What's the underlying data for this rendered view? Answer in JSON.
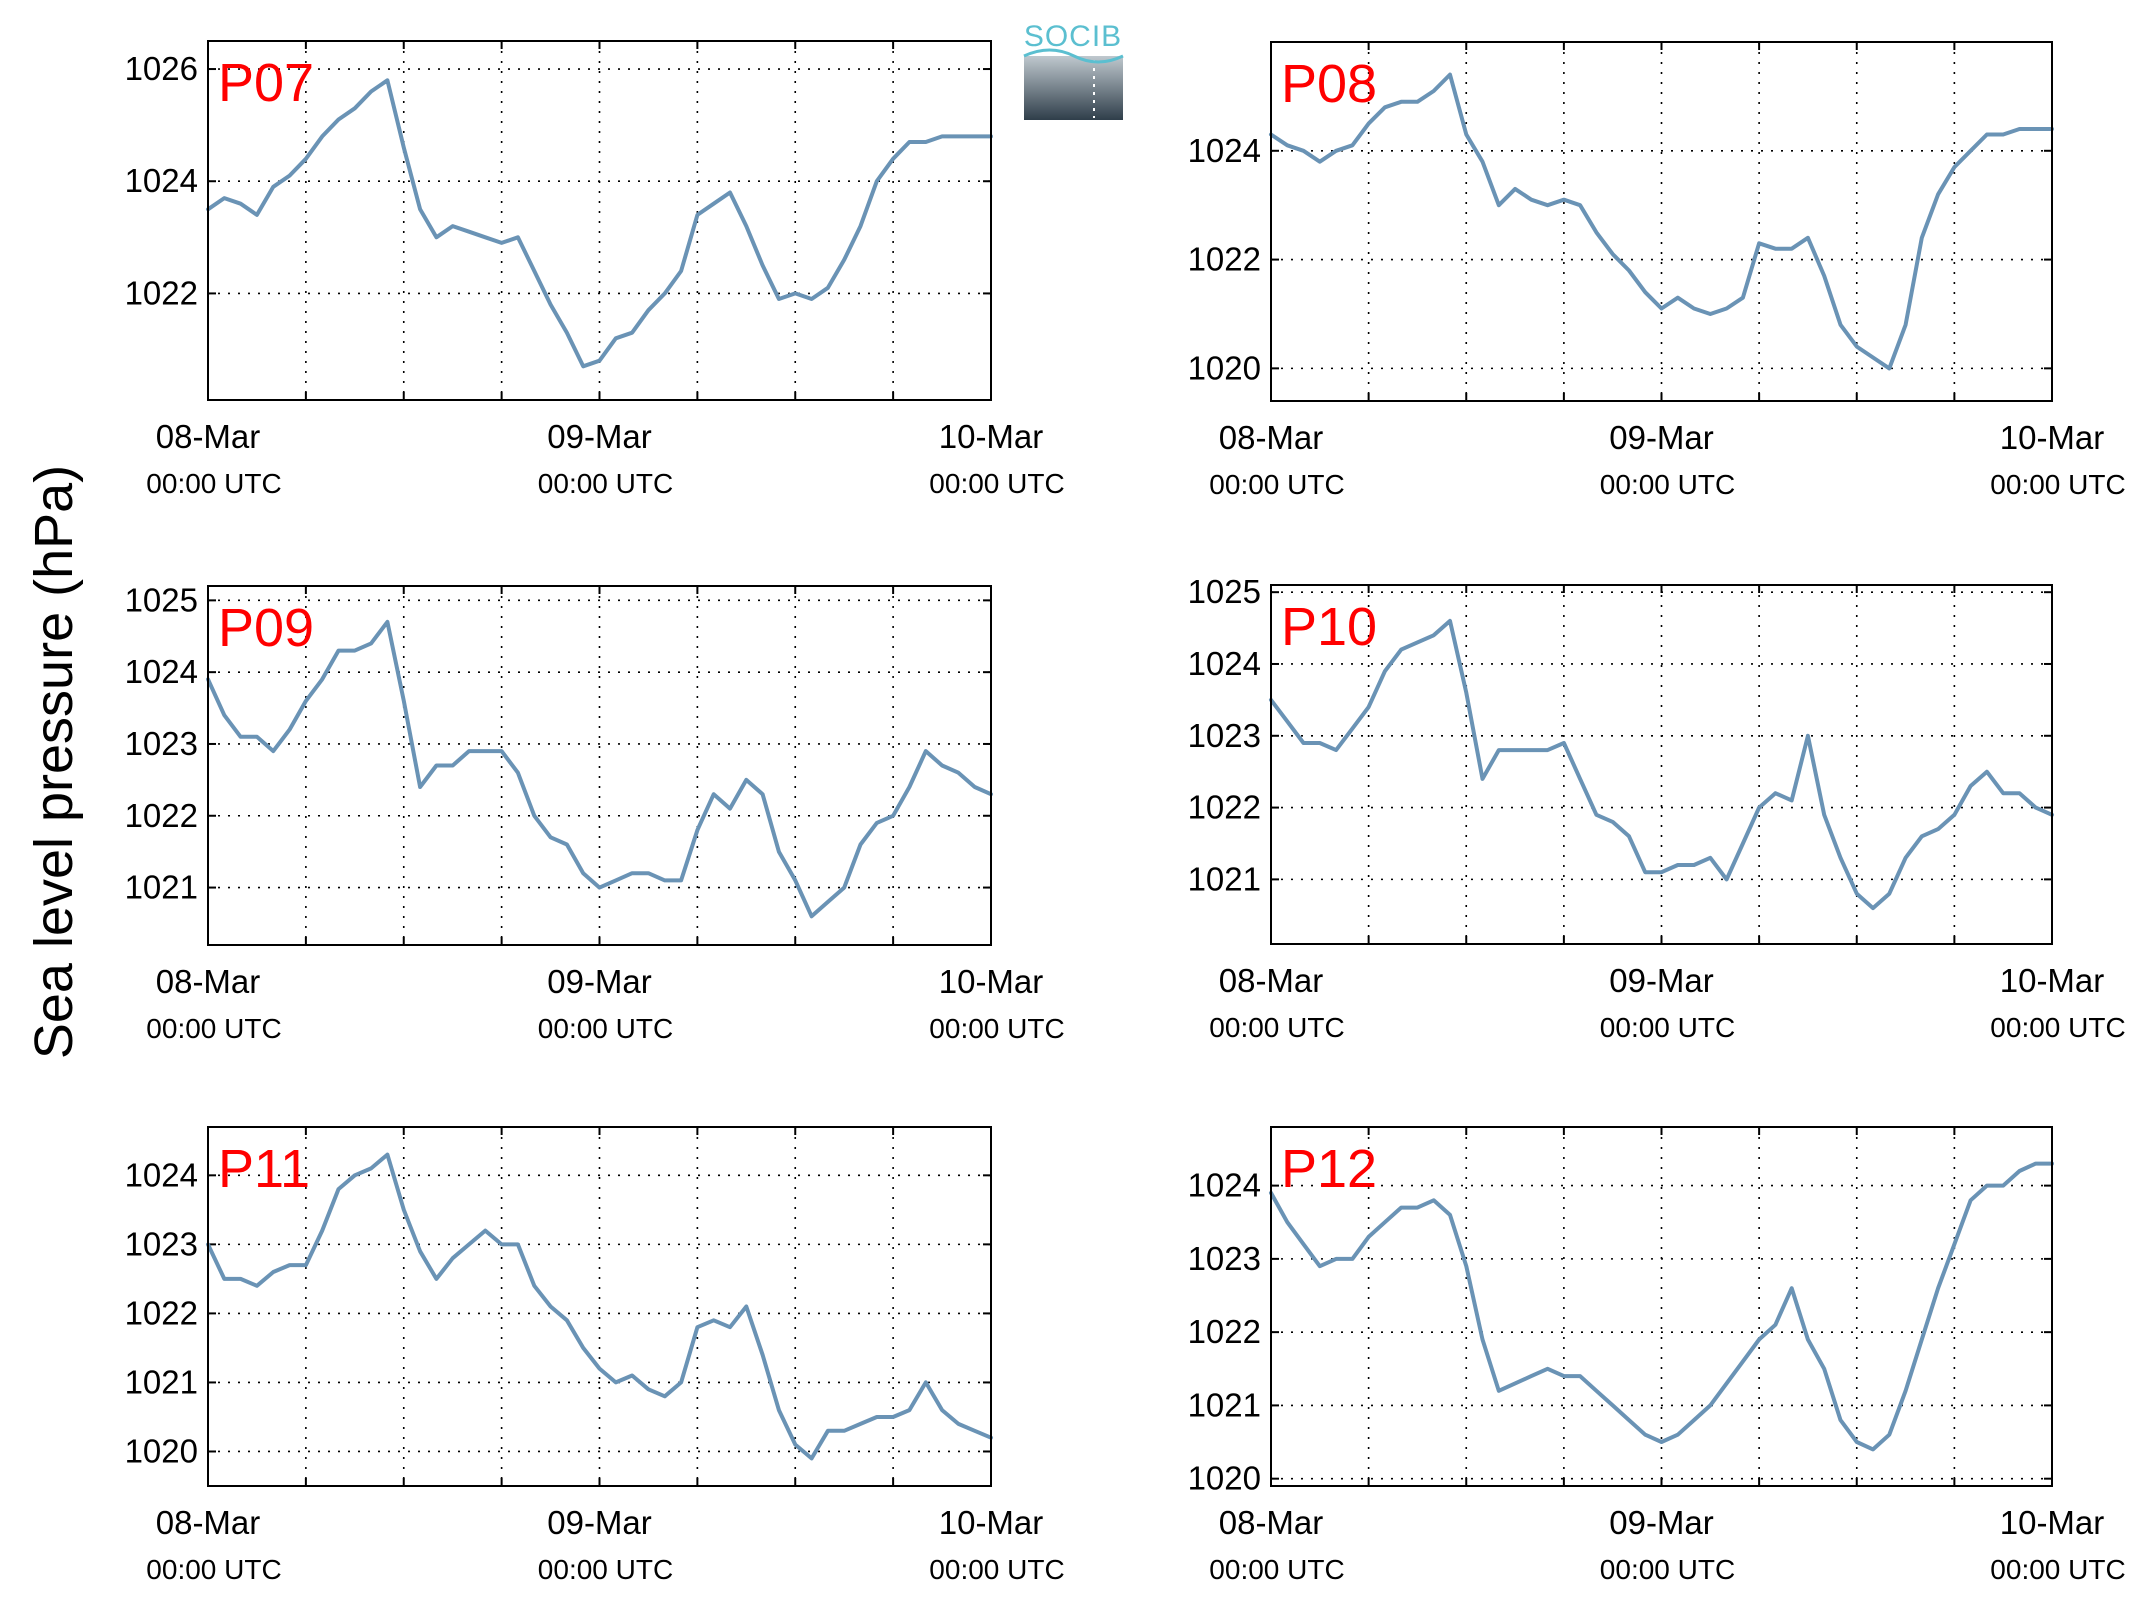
{
  "figure": {
    "ylabel": "Sea level pressure (hPa)",
    "logo_text": "SOCIB",
    "colors": {
      "line": "#6a93b5",
      "panel_label": "#ff0000",
      "logo_text": "#5bbfd0"
    }
  },
  "chart_data": [
    {
      "type": "line",
      "label": "P07",
      "xlim": [
        0,
        48
      ],
      "ylim": [
        1020.1,
        1026.5
      ],
      "yticks": [
        1022,
        1024,
        1026
      ],
      "xtick_hours": [
        0,
        24,
        48
      ],
      "xtick_labels": [
        [
          "08-Mar",
          "00:00 UTC"
        ],
        [
          "09-Mar",
          "00:00 UTC"
        ],
        [
          "10-Mar",
          "00:00 UTC"
        ]
      ],
      "series": [
        {
          "x": [
            0,
            1,
            2,
            3,
            4,
            5,
            6,
            7,
            8,
            9,
            10,
            11,
            12,
            13,
            14,
            15,
            16,
            17,
            18,
            19,
            20,
            21,
            22,
            23,
            24,
            25,
            26,
            27,
            28,
            29,
            30,
            31,
            32,
            33,
            34,
            35,
            36,
            37,
            38,
            39,
            40,
            41,
            42,
            43,
            44,
            45,
            46,
            47,
            48
          ],
          "y": [
            1023.5,
            1023.7,
            1023.6,
            1023.4,
            1023.9,
            1024.1,
            1024.4,
            1024.8,
            1025.1,
            1025.3,
            1025.6,
            1025.8,
            1024.6,
            1023.5,
            1023.0,
            1023.2,
            1023.1,
            1023.0,
            1022.9,
            1023.0,
            1022.4,
            1021.8,
            1021.3,
            1020.7,
            1020.8,
            1021.2,
            1021.3,
            1021.7,
            1022.0,
            1022.4,
            1023.4,
            1023.6,
            1023.8,
            1023.2,
            1022.5,
            1021.9,
            1022.0,
            1021.9,
            1022.1,
            1022.6,
            1023.2,
            1024.0,
            1024.4,
            1024.7,
            1024.7,
            1024.8,
            1024.8,
            1024.8,
            1024.8
          ]
        }
      ]
    },
    {
      "type": "line",
      "label": "P08",
      "xlim": [
        0,
        48
      ],
      "ylim": [
        1019.4,
        1026.0
      ],
      "yticks": [
        1020,
        1022,
        1024
      ],
      "xtick_hours": [
        0,
        24,
        48
      ],
      "xtick_labels": [
        [
          "08-Mar",
          "00:00 UTC"
        ],
        [
          "09-Mar",
          "00:00 UTC"
        ],
        [
          "10-Mar",
          "00:00 UTC"
        ]
      ],
      "series": [
        {
          "x": [
            0,
            1,
            2,
            3,
            4,
            5,
            6,
            7,
            8,
            9,
            10,
            11,
            12,
            13,
            14,
            15,
            16,
            17,
            18,
            19,
            20,
            21,
            22,
            23,
            24,
            25,
            26,
            27,
            28,
            29,
            30,
            31,
            32,
            33,
            34,
            35,
            36,
            37,
            38,
            39,
            40,
            41,
            42,
            43,
            44,
            45,
            46,
            47,
            48
          ],
          "y": [
            1024.3,
            1024.1,
            1024.0,
            1023.8,
            1024.0,
            1024.1,
            1024.5,
            1024.8,
            1024.9,
            1024.9,
            1025.1,
            1025.4,
            1024.3,
            1023.8,
            1023.0,
            1023.3,
            1023.1,
            1023.0,
            1023.1,
            1023.0,
            1022.5,
            1022.1,
            1021.8,
            1021.4,
            1021.1,
            1021.3,
            1021.1,
            1021.0,
            1021.1,
            1021.3,
            1022.3,
            1022.2,
            1022.2,
            1022.4,
            1021.7,
            1020.8,
            1020.4,
            1020.2,
            1020.0,
            1020.8,
            1022.4,
            1023.2,
            1023.7,
            1024.0,
            1024.3,
            1024.3,
            1024.4,
            1024.4,
            1024.4
          ]
        }
      ]
    },
    {
      "type": "line",
      "label": "P09",
      "xlim": [
        0,
        48
      ],
      "ylim": [
        1020.2,
        1025.2
      ],
      "yticks": [
        1021,
        1022,
        1023,
        1024,
        1025
      ],
      "xtick_hours": [
        0,
        24,
        48
      ],
      "xtick_labels": [
        [
          "08-Mar",
          "00:00 UTC"
        ],
        [
          "09-Mar",
          "00:00 UTC"
        ],
        [
          "10-Mar",
          "00:00 UTC"
        ]
      ],
      "series": [
        {
          "x": [
            0,
            1,
            2,
            3,
            4,
            5,
            6,
            7,
            8,
            9,
            10,
            11,
            12,
            13,
            14,
            15,
            16,
            17,
            18,
            19,
            20,
            21,
            22,
            23,
            24,
            25,
            26,
            27,
            28,
            29,
            30,
            31,
            32,
            33,
            34,
            35,
            36,
            37,
            38,
            39,
            40,
            41,
            42,
            43,
            44,
            45,
            46,
            47,
            48
          ],
          "y": [
            1023.9,
            1023.4,
            1023.1,
            1023.1,
            1022.9,
            1023.2,
            1023.6,
            1023.9,
            1024.3,
            1024.3,
            1024.4,
            1024.7,
            1023.6,
            1022.4,
            1022.7,
            1022.7,
            1022.9,
            1022.9,
            1022.9,
            1022.6,
            1022.0,
            1021.7,
            1021.6,
            1021.2,
            1021.0,
            1021.1,
            1021.2,
            1021.2,
            1021.1,
            1021.1,
            1021.8,
            1022.3,
            1022.1,
            1022.5,
            1022.3,
            1021.5,
            1021.1,
            1020.6,
            1020.8,
            1021.0,
            1021.6,
            1021.9,
            1022.0,
            1022.4,
            1022.9,
            1022.7,
            1022.6,
            1022.4,
            1022.3
          ]
        }
      ]
    },
    {
      "type": "line",
      "label": "P10",
      "xlim": [
        0,
        48
      ],
      "ylim": [
        1020.1,
        1025.1
      ],
      "yticks": [
        1021,
        1022,
        1023,
        1024,
        1025
      ],
      "xtick_hours": [
        0,
        24,
        48
      ],
      "xtick_labels": [
        [
          "08-Mar",
          "00:00 UTC"
        ],
        [
          "09-Mar",
          "00:00 UTC"
        ],
        [
          "10-Mar",
          "00:00 UTC"
        ]
      ],
      "series": [
        {
          "x": [
            0,
            1,
            2,
            3,
            4,
            5,
            6,
            7,
            8,
            9,
            10,
            11,
            12,
            13,
            14,
            15,
            16,
            17,
            18,
            19,
            20,
            21,
            22,
            23,
            24,
            25,
            26,
            27,
            28,
            29,
            30,
            31,
            32,
            33,
            34,
            35,
            36,
            37,
            38,
            39,
            40,
            41,
            42,
            43,
            44,
            45,
            46,
            47,
            48
          ],
          "y": [
            1023.5,
            1023.2,
            1022.9,
            1022.9,
            1022.8,
            1023.1,
            1023.4,
            1023.9,
            1024.2,
            1024.3,
            1024.4,
            1024.6,
            1023.6,
            1022.4,
            1022.8,
            1022.8,
            1022.8,
            1022.8,
            1022.9,
            1022.4,
            1021.9,
            1021.8,
            1021.6,
            1021.1,
            1021.1,
            1021.2,
            1021.2,
            1021.3,
            1021.0,
            1021.5,
            1022.0,
            1022.2,
            1022.1,
            1023.0,
            1021.9,
            1021.3,
            1020.8,
            1020.6,
            1020.8,
            1021.3,
            1021.6,
            1021.7,
            1021.9,
            1022.3,
            1022.5,
            1022.2,
            1022.2,
            1022.0,
            1021.9
          ]
        }
      ]
    },
    {
      "type": "line",
      "label": "P11",
      "xlim": [
        0,
        48
      ],
      "ylim": [
        1019.5,
        1024.7
      ],
      "yticks": [
        1020,
        1021,
        1022,
        1023,
        1024
      ],
      "xtick_hours": [
        0,
        24,
        48
      ],
      "xtick_labels": [
        [
          "08-Mar",
          "00:00 UTC"
        ],
        [
          "09-Mar",
          "00:00 UTC"
        ],
        [
          "10-Mar",
          "00:00 UTC"
        ]
      ],
      "series": [
        {
          "x": [
            0,
            1,
            2,
            3,
            4,
            5,
            6,
            7,
            8,
            9,
            10,
            11,
            12,
            13,
            14,
            15,
            16,
            17,
            18,
            19,
            20,
            21,
            22,
            23,
            24,
            25,
            26,
            27,
            28,
            29,
            30,
            31,
            32,
            33,
            34,
            35,
            36,
            37,
            38,
            39,
            40,
            41,
            42,
            43,
            44,
            45,
            46,
            47,
            48
          ],
          "y": [
            1023.0,
            1022.5,
            1022.5,
            1022.4,
            1022.6,
            1022.7,
            1022.7,
            1023.2,
            1023.8,
            1024.0,
            1024.1,
            1024.3,
            1023.5,
            1022.9,
            1022.5,
            1022.8,
            1023.0,
            1023.2,
            1023.0,
            1023.0,
            1022.4,
            1022.1,
            1021.9,
            1021.5,
            1021.2,
            1021.0,
            1021.1,
            1020.9,
            1020.8,
            1021.0,
            1021.8,
            1021.9,
            1021.8,
            1022.1,
            1021.4,
            1020.6,
            1020.1,
            1019.9,
            1020.3,
            1020.3,
            1020.4,
            1020.5,
            1020.5,
            1020.6,
            1021.0,
            1020.6,
            1020.4,
            1020.3,
            1020.2
          ]
        }
      ]
    },
    {
      "type": "line",
      "label": "P12",
      "xlim": [
        0,
        48
      ],
      "ylim": [
        1019.9,
        1024.8
      ],
      "yticks": [
        1020,
        1021,
        1022,
        1023,
        1024
      ],
      "xtick_hours": [
        0,
        24,
        48
      ],
      "xtick_labels": [
        [
          "08-Mar",
          "00:00 UTC"
        ],
        [
          "09-Mar",
          "00:00 UTC"
        ],
        [
          "10-Mar",
          "00:00 UTC"
        ]
      ],
      "series": [
        {
          "x": [
            0,
            1,
            2,
            3,
            4,
            5,
            6,
            7,
            8,
            9,
            10,
            11,
            12,
            13,
            14,
            15,
            16,
            17,
            18,
            19,
            20,
            21,
            22,
            23,
            24,
            25,
            26,
            27,
            28,
            29,
            30,
            31,
            32,
            33,
            34,
            35,
            36,
            37,
            38,
            39,
            40,
            41,
            42,
            43,
            44,
            45,
            46,
            47,
            48
          ],
          "y": [
            1023.9,
            1023.5,
            1023.2,
            1022.9,
            1023.0,
            1023.0,
            1023.3,
            1023.5,
            1023.7,
            1023.7,
            1023.8,
            1023.6,
            1022.9,
            1021.9,
            1021.2,
            1021.3,
            1021.4,
            1021.5,
            1021.4,
            1021.4,
            1021.2,
            1021.0,
            1020.8,
            1020.6,
            1020.5,
            1020.6,
            1020.8,
            1021.0,
            1021.3,
            1021.6,
            1021.9,
            1022.1,
            1022.6,
            1021.9,
            1021.5,
            1020.8,
            1020.5,
            1020.4,
            1020.6,
            1021.2,
            1021.9,
            1022.6,
            1023.2,
            1023.8,
            1024.0,
            1024.0,
            1024.2,
            1024.3,
            1024.3
          ]
        }
      ]
    }
  ]
}
